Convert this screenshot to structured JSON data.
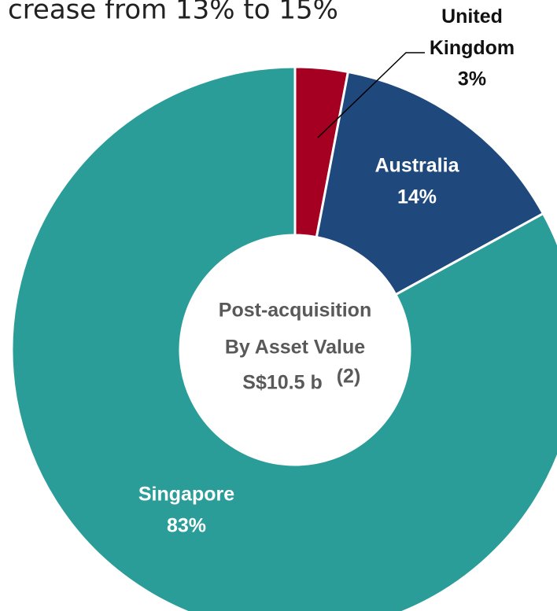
{
  "chart_data": {
    "type": "donut",
    "subtitle": "crease from 13% to 15%",
    "center_title": "Post-acquisition",
    "center_subtitle": "By Asset Value",
    "center_value": "S$10.5 b",
    "center_note": "(2)",
    "categories": [
      "United Kingdom",
      "Australia",
      "Singapore"
    ],
    "values": [
      3,
      14,
      83
    ],
    "value_labels": [
      "3%",
      "14%",
      "83%"
    ],
    "colors": [
      "#a50021",
      "#1f497d",
      "#2a9d99"
    ]
  }
}
